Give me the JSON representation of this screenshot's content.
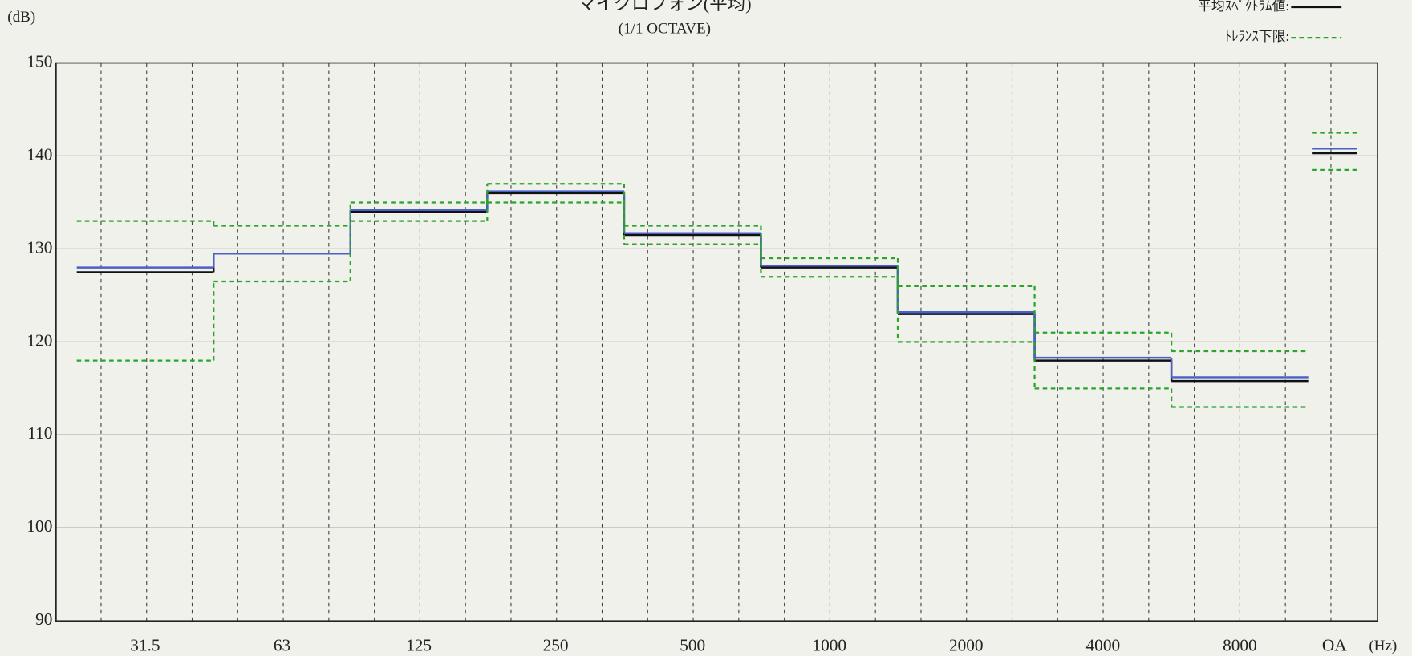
{
  "chart_data": {
    "type": "step",
    "title": "マイクロフォン(平均)",
    "subtitle": "(1/1 OCTAVE)",
    "y_label": "(dB)",
    "x_label": "(Hz)",
    "categories": [
      "31.5",
      "63",
      "125",
      "250",
      "500",
      "1000",
      "2000",
      "4000",
      "8000",
      "OA"
    ],
    "series": [
      {
        "name": "平均ｽﾍﾟｸﾄﾗﾑ値:",
        "color": "#111111",
        "dash": false,
        "values": [
          127.5,
          129.5,
          134,
          136,
          131.5,
          128,
          123,
          118,
          115.8,
          140.3
        ]
      },
      {
        "color": "#4a5fc8",
        "dash": false,
        "values": [
          128,
          129.5,
          134.2,
          136.2,
          131.7,
          128.2,
          123.2,
          118.3,
          116.2,
          140.8
        ]
      },
      {
        "name": "ﾄﾚﾗﾝｽ下限:",
        "color": "#2aa52a",
        "dash": true,
        "values": [
          118,
          126.5,
          133,
          135,
          130.5,
          127,
          120,
          115,
          113,
          138.5
        ]
      },
      {
        "color": "#2aa52a",
        "dash": true,
        "values": [
          133,
          132.5,
          135,
          137,
          132.5,
          129,
          126,
          121,
          119,
          142.5
        ]
      }
    ],
    "ylim": [
      90,
      150
    ],
    "yticks": [
      90,
      100,
      110,
      120,
      130,
      140,
      150
    ],
    "grid": true
  }
}
